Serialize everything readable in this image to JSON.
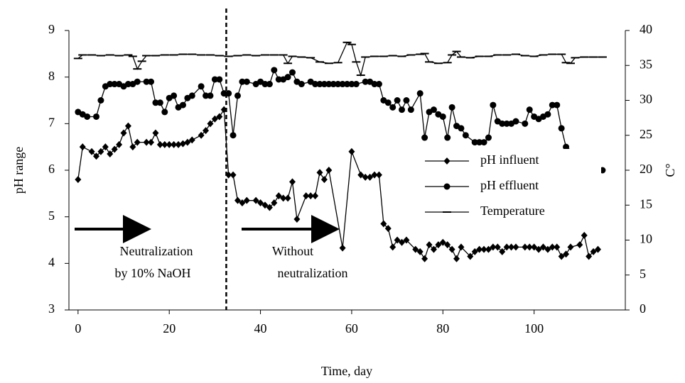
{
  "chart_data": {
    "type": "line",
    "x_label": "Time, day",
    "y_label": "pH range",
    "y2_label": "C°",
    "xlim": [
      -2,
      120
    ],
    "xticks": [
      0,
      20,
      40,
      60,
      80,
      100
    ],
    "ylim": [
      3,
      9
    ],
    "yticks": [
      3,
      4,
      5,
      6,
      7,
      8,
      9
    ],
    "y2lim": [
      0,
      40
    ],
    "y2ticks": [
      0,
      5,
      10,
      15,
      20,
      25,
      30,
      35,
      40
    ],
    "divider_x": 32.5,
    "annotations": [
      "Neutralization",
      "by 10%  NaOH",
      "Without",
      "neutralization"
    ],
    "series": [
      {
        "name": "pH influent",
        "color": "#000000",
        "marker": "diamond",
        "x": [
          0,
          1,
          3,
          4,
          5,
          6,
          7,
          8,
          9,
          10,
          11,
          12,
          13,
          15,
          16,
          17,
          18,
          19,
          20,
          21,
          22,
          23,
          24,
          25,
          27,
          28,
          29,
          30,
          31,
          32,
          33,
          34,
          35,
          36,
          37,
          39,
          40,
          41,
          42,
          43,
          44,
          45,
          46,
          47,
          48,
          50,
          51,
          52,
          53,
          54,
          55,
          58,
          60,
          62,
          63,
          64,
          65,
          66,
          67,
          68,
          69,
          70,
          71,
          72,
          74,
          75,
          76,
          77,
          78,
          79,
          80,
          81,
          82,
          83,
          84,
          86,
          87,
          88,
          89,
          90,
          91,
          92,
          93,
          94,
          95,
          96,
          98,
          99,
          100,
          101,
          102,
          103,
          104,
          105,
          106,
          107,
          108,
          110,
          111,
          112,
          113,
          114
        ],
        "values": [
          5.8,
          6.5,
          6.4,
          6.3,
          6.4,
          6.5,
          6.35,
          6.45,
          6.55,
          6.8,
          6.95,
          6.5,
          6.6,
          6.6,
          6.6,
          6.8,
          6.55,
          6.55,
          6.55,
          6.55,
          6.55,
          6.57,
          6.6,
          6.65,
          6.75,
          6.85,
          7.0,
          7.1,
          7.15,
          7.3,
          5.9,
          5.9,
          5.35,
          5.3,
          5.35,
          5.35,
          5.3,
          5.25,
          5.2,
          5.3,
          5.45,
          5.4,
          5.4,
          5.75,
          4.95,
          5.45,
          5.45,
          5.45,
          5.95,
          5.8,
          6.0,
          4.33,
          6.4,
          5.9,
          5.85,
          5.85,
          5.9,
          5.9,
          4.85,
          4.75,
          4.35,
          4.5,
          4.45,
          4.5,
          4.3,
          4.25,
          4.1,
          4.4,
          4.3,
          4.4,
          4.45,
          4.4,
          4.3,
          4.1,
          4.35,
          4.15,
          4.25,
          4.3,
          4.3,
          4.3,
          4.35,
          4.35,
          4.25,
          4.35,
          4.35,
          4.35,
          4.35,
          4.35,
          4.35,
          4.3,
          4.35,
          4.3,
          4.35,
          4.35,
          4.15,
          4.2,
          4.35,
          4.4,
          4.6,
          4.15,
          4.25,
          4.3
        ]
      },
      {
        "name": "pH effluent",
        "color": "#000000",
        "marker": "circle",
        "x": [
          0,
          1,
          2,
          4,
          5,
          6,
          7,
          8,
          9,
          10,
          11,
          12,
          13,
          15,
          16,
          17,
          18,
          19,
          20,
          21,
          22,
          23,
          24,
          25,
          27,
          28,
          29,
          30,
          31,
          32,
          33,
          34,
          35,
          36,
          37,
          39,
          40,
          41,
          42,
          43,
          44,
          45,
          46,
          47,
          48,
          49,
          51,
          52,
          53,
          54,
          55,
          56,
          57,
          58,
          59,
          60,
          61,
          63,
          64,
          65,
          66,
          67,
          68,
          69,
          70,
          71,
          72,
          73,
          75,
          76,
          77,
          78,
          79,
          80,
          81,
          82,
          83,
          84,
          85,
          87,
          88,
          89,
          90,
          91,
          92,
          93,
          94,
          95,
          96,
          98,
          99,
          100,
          101,
          102,
          103,
          104,
          105,
          106,
          107,
          110,
          112,
          115
        ],
        "values": [
          7.25,
          7.2,
          7.15,
          7.15,
          7.5,
          7.8,
          7.85,
          7.85,
          7.85,
          7.8,
          7.85,
          7.85,
          7.9,
          7.9,
          7.9,
          7.45,
          7.45,
          7.25,
          7.55,
          7.6,
          7.35,
          7.4,
          7.55,
          7.6,
          7.8,
          7.6,
          7.6,
          7.95,
          7.95,
          7.65,
          7.65,
          6.75,
          7.6,
          7.9,
          7.9,
          7.85,
          7.9,
          7.85,
          7.85,
          8.15,
          7.95,
          7.95,
          8.0,
          8.1,
          7.9,
          7.85,
          7.9,
          7.85,
          7.85,
          7.85,
          7.85,
          7.85,
          7.85,
          7.85,
          7.85,
          7.85,
          7.85,
          7.9,
          7.9,
          7.85,
          7.85,
          7.5,
          7.45,
          7.35,
          7.5,
          7.3,
          7.5,
          7.3,
          7.65,
          6.7,
          7.25,
          7.3,
          7.2,
          7.15,
          6.7,
          7.35,
          6.95,
          6.9,
          6.75,
          6.6,
          6.6,
          6.6,
          6.7,
          7.4,
          7.05,
          7.0,
          7.0,
          7.0,
          7.05,
          7.0,
          7.3,
          7.15,
          7.1,
          7.15,
          7.2,
          7.4,
          7.4,
          6.9,
          6.5,
          6.3,
          6.1,
          6.0
        ]
      },
      {
        "name": " Temperature",
        "color": "#000000",
        "marker": "dash",
        "axis": "y2",
        "x": [
          0,
          1,
          3,
          5,
          7,
          9,
          11,
          12,
          13,
          14,
          15,
          17,
          19,
          21,
          23,
          25,
          27,
          29,
          31,
          33,
          35,
          37,
          39,
          41,
          43,
          45,
          46,
          47,
          49,
          51,
          53,
          55,
          57,
          59,
          60,
          61,
          62,
          63,
          65,
          67,
          69,
          71,
          73,
          75,
          76,
          77,
          79,
          81,
          82,
          83,
          84,
          86,
          88,
          90,
          92,
          94,
          96,
          98,
          100,
          102,
          104,
          106,
          107,
          108,
          109,
          111,
          113,
          115
        ],
        "values": [
          36.0,
          36.5,
          36.5,
          36.4,
          36.5,
          36.4,
          36.5,
          36.3,
          34.5,
          35.6,
          36.4,
          36.4,
          36.5,
          36.5,
          36.6,
          36.6,
          36.5,
          36.5,
          36.4,
          36.3,
          36.4,
          36.5,
          36.4,
          36.5,
          36.5,
          36.5,
          35.3,
          36.3,
          36.2,
          36.1,
          35.5,
          35.3,
          35.4,
          38.3,
          38.0,
          35.5,
          33.6,
          36.2,
          36.3,
          36.3,
          36.4,
          36.3,
          36.5,
          36.6,
          36.7,
          35.5,
          35.3,
          35.4,
          36.5,
          37.0,
          36.2,
          36.1,
          36.3,
          36.3,
          36.5,
          36.5,
          36.6,
          36.4,
          36.3,
          36.5,
          36.6,
          36.6,
          35.4,
          35.3,
          36.1,
          36.2,
          36.2,
          36.2
        ]
      }
    ]
  }
}
